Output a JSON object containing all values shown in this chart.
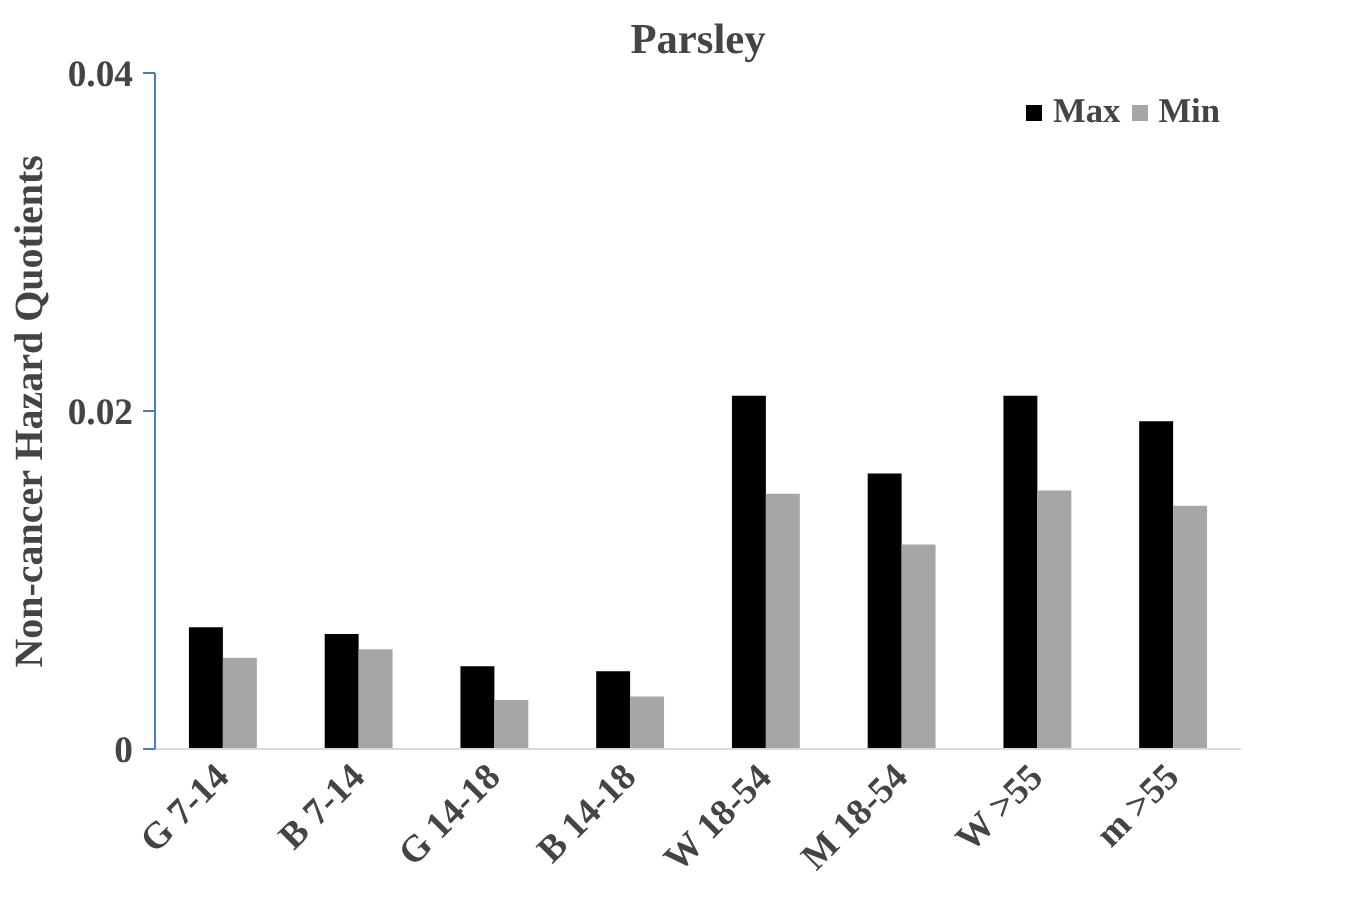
{
  "chart_data": {
    "type": "bar",
    "title": "Parsley",
    "ylabel": "Non-cancer Hazard Quotients",
    "categories": [
      "G 7-14",
      "B 7-14",
      "G 14-18",
      "B 14-18",
      "W 18-54",
      "M 18-54",
      "W >55",
      "m >55"
    ],
    "series": [
      {
        "name": "Max",
        "color": "#000000",
        "values": [
          0.0072,
          0.0068,
          0.0049,
          0.0046,
          0.0209,
          0.0163,
          0.0209,
          0.0194
        ]
      },
      {
        "name": "Min",
        "color": "#a6a6a6",
        "values": [
          0.0054,
          0.0059,
          0.0029,
          0.0031,
          0.0151,
          0.0121,
          0.0153,
          0.0144
        ]
      }
    ],
    "ylim": [
      0,
      0.04
    ],
    "yticks": [
      {
        "value": 0,
        "label": "0"
      },
      0.02,
      0.04
    ],
    "legend": "top right"
  }
}
